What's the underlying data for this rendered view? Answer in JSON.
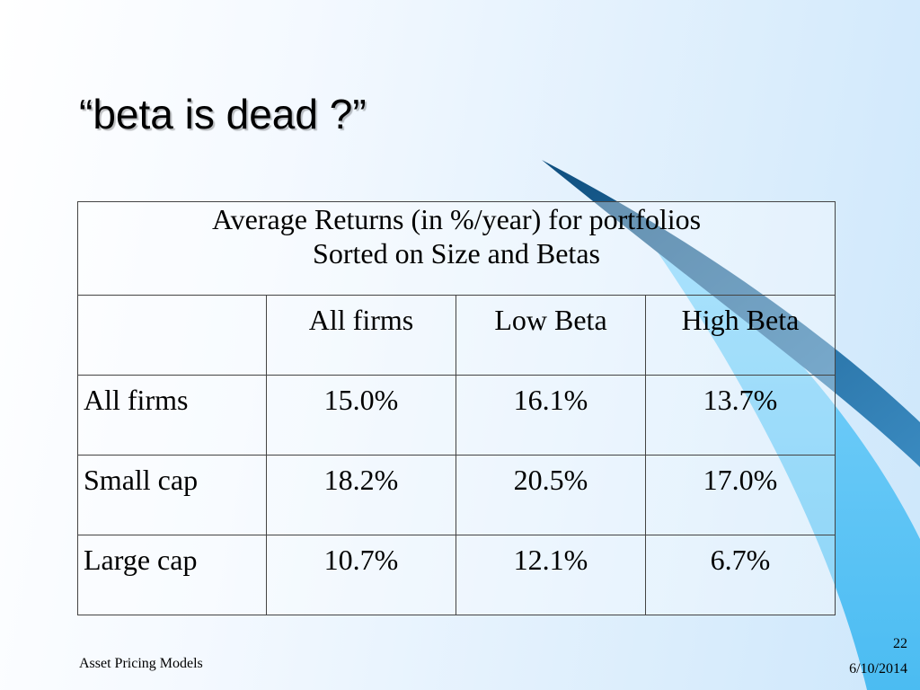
{
  "slide": {
    "title": "“beta is dead ?”",
    "footer_left": "Asset Pricing Models",
    "page_number": "22",
    "date": "6/10/2014"
  },
  "table": {
    "caption_line1": "Average Returns (in %/year) for portfolios",
    "caption_line2": "Sorted on Size and Betas",
    "columns": [
      "",
      "All firms",
      "Low Beta",
      "High Beta"
    ],
    "rows": [
      {
        "label": "All firms",
        "values": [
          "15.0%",
          "16.1%",
          "13.7%"
        ]
      },
      {
        "label": "Small cap",
        "values": [
          "18.2%",
          "20.5%",
          "17.0%"
        ]
      },
      {
        "label": "Large cap",
        "values": [
          "10.7%",
          "12.1%",
          "6.7%"
        ]
      }
    ]
  },
  "colors": {
    "swoosh_dark": "#1f5f8f",
    "swoosh_light": "#5cc4f5"
  }
}
